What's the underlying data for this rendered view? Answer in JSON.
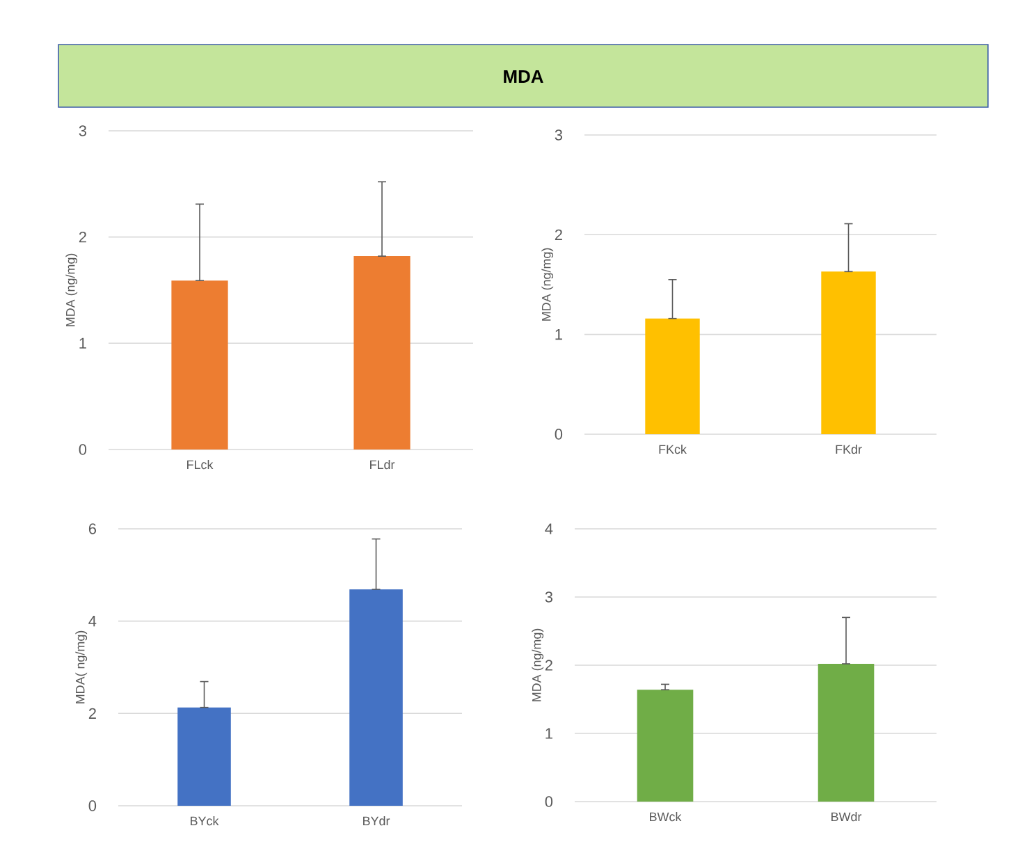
{
  "chart_data": [
    {
      "type": "bar",
      "annotations": [
        "MDA"
      ],
      "ylabel": "MDA (ng/mg)",
      "categories": [
        "FLck",
        "FLdr"
      ],
      "values": [
        1.59,
        1.82
      ],
      "color": "#ed7d31",
      "errors": [
        [
          1.59,
          2.31
        ],
        [
          1.82,
          2.52
        ]
      ],
      "ylim": [
        0,
        3
      ],
      "yticks": [
        0,
        1,
        2,
        3
      ],
      "grid": "y"
    },
    {
      "type": "bar",
      "ylabel": "MDA (ng/mg)",
      "categories": [
        "FKck",
        "FKdr"
      ],
      "values": [
        1.16,
        1.63
      ],
      "color": "#ffc000",
      "errors": [
        [
          1.16,
          1.55
        ],
        [
          1.63,
          2.11
        ]
      ],
      "ylim": [
        0,
        3
      ],
      "yticks": [
        0,
        1,
        2,
        3
      ],
      "grid": "y"
    },
    {
      "type": "bar",
      "ylabel": "MDA( ng/mg)",
      "categories": [
        "BYck",
        "BYdr"
      ],
      "values": [
        2.13,
        4.69
      ],
      "color": "#4472c4",
      "errors": [
        [
          2.13,
          2.69
        ],
        [
          4.69,
          5.78
        ]
      ],
      "ylim": [
        0,
        6
      ],
      "yticks": [
        0,
        2,
        4,
        6
      ],
      "grid": "y"
    },
    {
      "type": "bar",
      "ylabel": "MDA (ng/mg)",
      "categories": [
        "BWck",
        "BWdr"
      ],
      "values": [
        1.64,
        2.02
      ],
      "color": "#70ad47",
      "errors": [
        [
          1.64,
          1.72
        ],
        [
          2.02,
          2.7
        ]
      ],
      "ylim": [
        0,
        4
      ],
      "yticks": [
        0,
        1,
        2,
        3,
        4
      ],
      "grid": "y"
    }
  ]
}
